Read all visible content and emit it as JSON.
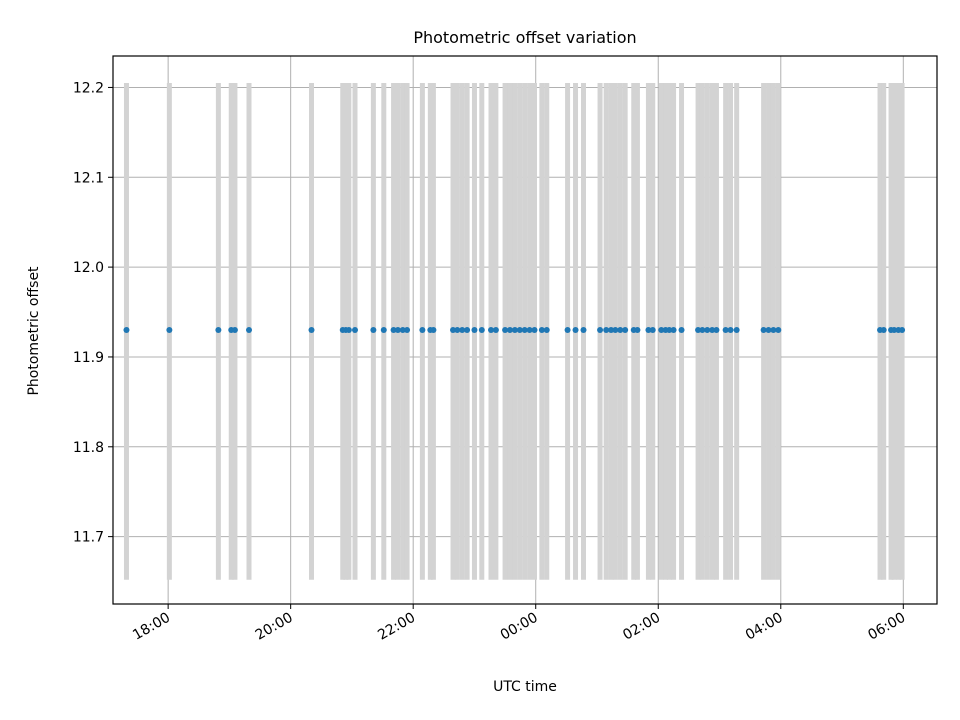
{
  "chart_data": {
    "type": "scatter",
    "title": "Photometric offset variation",
    "xlabel": "UTC time",
    "ylabel": "Photometric offset",
    "x_unit": "UTC time (hours, continuing past 24:00 into the next day)",
    "xlim": [
      17.1,
      30.55
    ],
    "ylim": [
      11.625,
      12.235
    ],
    "x_ticks": [
      18,
      20,
      22,
      24,
      26,
      28,
      30
    ],
    "x_tick_labels": [
      "18:00",
      "20:00",
      "22:00",
      "00:00",
      "02:00",
      "04:00",
      "06:00"
    ],
    "y_ticks": [
      11.7,
      11.8,
      11.9,
      12.0,
      12.1,
      12.2
    ],
    "y_tick_labels": [
      "11.7",
      "11.8",
      "11.9",
      "12.0",
      "12.1",
      "12.2"
    ],
    "grid": true,
    "colors": {
      "points": "#1f77b4",
      "error_bars": "#d3d3d3",
      "grid": "#b0b0b0"
    },
    "series": [
      {
        "y": 11.93,
        "error_low": 11.652,
        "error_high": 12.205,
        "x": [
          17.32,
          18.02,
          18.82,
          19.03,
          19.09,
          19.32,
          20.34,
          20.85,
          20.9,
          20.95,
          21.05,
          21.35,
          21.52,
          21.68,
          21.75,
          21.83,
          21.9,
          22.15,
          22.28,
          22.33,
          22.65,
          22.72,
          22.8,
          22.88,
          23.0,
          23.12,
          23.27,
          23.35,
          23.5,
          23.58,
          23.66,
          23.74,
          23.82,
          23.9,
          23.98,
          24.1,
          24.18,
          24.52,
          24.65,
          24.78,
          25.05,
          25.15,
          25.23,
          25.3,
          25.38,
          25.46,
          25.6,
          25.66,
          25.84,
          25.91,
          26.05,
          26.12,
          26.18,
          26.25,
          26.38,
          26.65,
          26.72,
          26.8,
          26.88,
          26.95,
          27.1,
          27.18,
          27.28,
          27.72,
          27.8,
          27.88,
          27.96,
          29.62,
          29.68,
          29.8,
          29.85,
          29.92,
          29.98
        ]
      }
    ]
  }
}
